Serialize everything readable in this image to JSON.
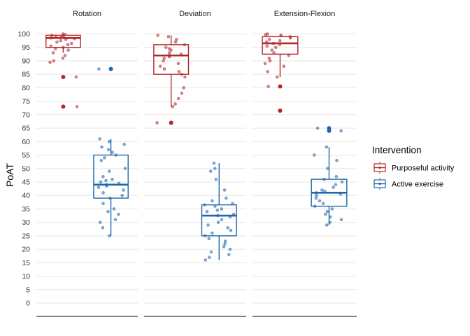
{
  "chart_data": {
    "type": "box",
    "ylabel": "PoAT",
    "xlabel": "",
    "ylim": [
      -5,
      105
    ],
    "yticks": [
      0,
      5,
      10,
      15,
      20,
      25,
      30,
      35,
      40,
      45,
      50,
      55,
      60,
      65,
      70,
      75,
      80,
      85,
      90,
      95,
      100
    ],
    "grid": true,
    "legend": {
      "title": "Intervention",
      "position": "right",
      "entries": [
        {
          "name": "Purposeful activity",
          "color": "#b2282b"
        },
        {
          "name": "Active exercise",
          "color": "#1f66ad"
        }
      ]
    },
    "facets": [
      {
        "name": "Rotation",
        "boxes": [
          {
            "group": "Purposeful activity",
            "min": 93,
            "q1": 95,
            "median": 98.5,
            "q3": 99.5,
            "max": 100,
            "outliers": [
              84,
              73
            ],
            "points": [
              100,
              99.8,
              99.5,
              99.2,
              99,
              98.8,
              98.5,
              98.2,
              98,
              97.5,
              97,
              96.5,
              96,
              95.5,
              95,
              94.5,
              94,
              93,
              92,
              91,
              90,
              89.5,
              84,
              73
            ]
          },
          {
            "group": "Active exercise",
            "min": 25,
            "q1": 39,
            "median": 44,
            "q3": 55,
            "max": 61,
            "outliers": [
              87
            ],
            "points": [
              61,
              60,
              59,
              58,
              57,
              56,
              55,
              54,
              53,
              50,
              49,
              47,
              46,
              45.5,
              45,
              44.5,
              44,
              43.5,
              43,
              42,
              41,
              40,
              39,
              37,
              35,
              34,
              33,
              31,
              30,
              28,
              25,
              87
            ]
          }
        ]
      },
      {
        "name": "Deviation",
        "boxes": [
          {
            "group": "Purposeful activity",
            "min": 73,
            "q1": 85,
            "median": 92,
            "q3": 96,
            "max": 99.5,
            "outliers": [
              67
            ],
            "points": [
              99.5,
              99,
              98,
              97,
              96,
              95,
              94.5,
              94,
              93,
              92.5,
              92,
              91.5,
              91,
              90,
              89,
              88,
              87,
              86,
              85,
              84,
              80,
              78,
              76,
              74,
              73,
              67
            ]
          },
          {
            "group": "Active exercise",
            "min": 16,
            "q1": 25,
            "median": 32.5,
            "q3": 36.5,
            "max": 52,
            "outliers": [],
            "points": [
              52,
              50,
              49,
              46,
              42,
              39,
              38,
              37,
              36.5,
              36,
              35,
              34.5,
              34,
              33,
              32.5,
              32,
              31,
              30,
              29,
              28,
              27,
              26,
              25,
              24,
              23,
              22,
              21,
              20,
              19,
              18,
              17,
              16
            ]
          }
        ]
      },
      {
        "name": "Extension-Flexion",
        "boxes": [
          {
            "group": "Purposeful activity",
            "min": 84,
            "q1": 92.5,
            "median": 96.5,
            "q3": 99,
            "max": 100,
            "outliers": [
              80.5,
              71.5
            ],
            "points": [
              100,
              99.8,
              99.5,
              99,
              98.5,
              98,
              97.5,
              97,
              96.5,
              96,
              95.5,
              95,
              94,
              93,
              92,
              91,
              90,
              89,
              88,
              86,
              84,
              80.5,
              71.5
            ]
          },
          {
            "group": "Active exercise",
            "min": 29,
            "q1": 36,
            "median": 41,
            "q3": 46,
            "max": 58,
            "outliers": [
              65,
              64
            ],
            "points": [
              58,
              55,
              53,
              50,
              47,
              46,
              45,
              44,
              43,
              42,
              41.5,
              41,
              40.5,
              40,
              39,
              38,
              37,
              36,
              35,
              34,
              33,
              32,
              31,
              30,
              29,
              65,
              64
            ]
          }
        ]
      }
    ]
  }
}
